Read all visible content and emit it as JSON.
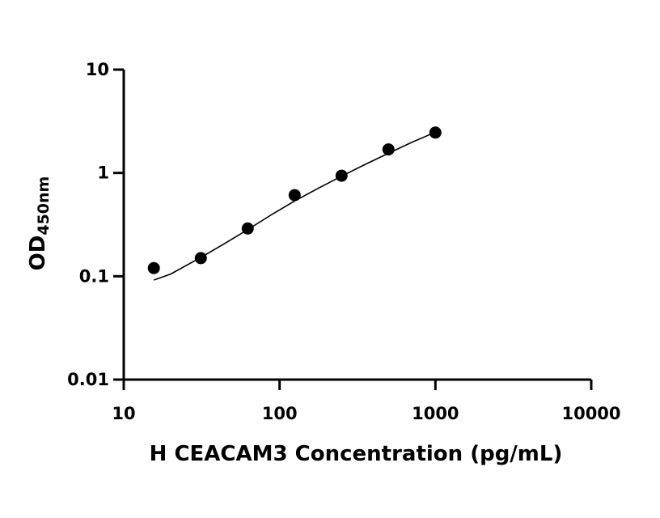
{
  "chart_data": {
    "type": "scatter",
    "title": "",
    "xlabel": "H CEACAM3 Concentration (pg/mL)",
    "ylabel": {
      "main": "OD",
      "subscript": "450nm"
    },
    "x_scale": "log",
    "y_scale": "log",
    "xlim": [
      10,
      10000
    ],
    "ylim": [
      0.01,
      10
    ],
    "x_ticks": [
      {
        "value": 10,
        "label": "10"
      },
      {
        "value": 100,
        "label": "100"
      },
      {
        "value": 1000,
        "label": "1000"
      },
      {
        "value": 10000,
        "label": "10000"
      }
    ],
    "y_ticks": [
      {
        "value": 0.01,
        "label": "0.01"
      },
      {
        "value": 0.1,
        "label": "0.1"
      },
      {
        "value": 1,
        "label": "1"
      },
      {
        "value": 10,
        "label": "10"
      }
    ],
    "grid": false,
    "legend": "none",
    "series": [
      {
        "x": [
          15.6,
          31.25,
          62.5,
          125,
          250,
          500,
          1000
        ],
        "y": [
          0.12,
          0.15,
          0.29,
          0.61,
          0.94,
          1.69,
          2.46
        ]
      }
    ],
    "fit_curve": {
      "x": [
        15.6,
        20,
        31.25,
        45,
        62.5,
        90,
        125,
        180,
        250,
        350,
        500,
        700,
        1000
      ],
      "y": [
        0.092,
        0.105,
        0.152,
        0.21,
        0.283,
        0.4,
        0.535,
        0.72,
        0.93,
        1.2,
        1.55,
        1.97,
        2.48
      ]
    },
    "colors": {
      "points": "#000000",
      "line": "#000000",
      "axes": "#000000"
    }
  }
}
